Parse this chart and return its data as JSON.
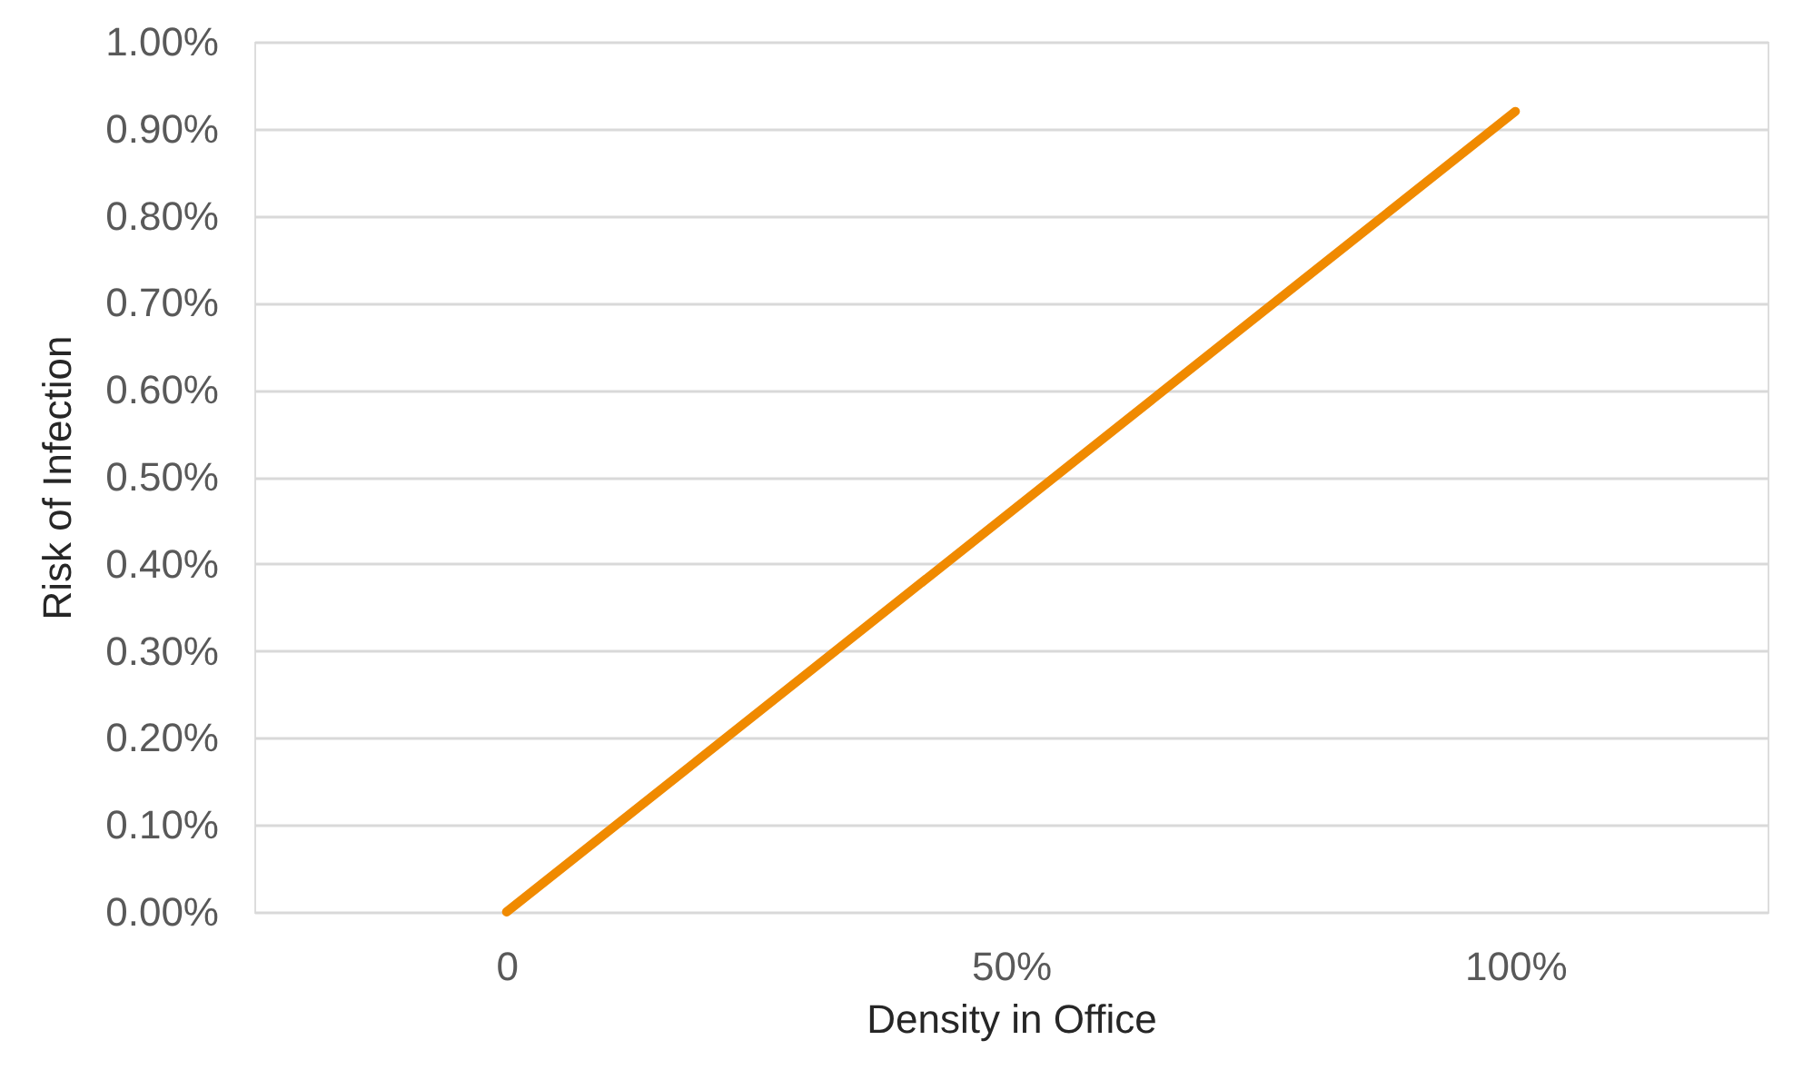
{
  "chart_data": {
    "type": "line",
    "xlabel": "Density in Office",
    "ylabel": "Risk of Infection",
    "x": [
      0,
      100
    ],
    "series": [
      {
        "color": "#f08a00",
        "values": [
          0,
          0.92
        ]
      }
    ],
    "xlim": [
      -25,
      125
    ],
    "xticks": [
      {
        "value": 0,
        "label": "0"
      },
      {
        "value": 50,
        "label": "50%"
      },
      {
        "value": 100,
        "label": "100%"
      }
    ],
    "ylim": [
      0,
      1
    ],
    "yticks": [
      {
        "value": 0,
        "label": "0.00%"
      },
      {
        "value": 0.1,
        "label": "0.10%"
      },
      {
        "value": 0.2,
        "label": "0.20%"
      },
      {
        "value": 0.3,
        "label": "0.30%"
      },
      {
        "value": 0.4,
        "label": "0.40%"
      },
      {
        "value": 0.5,
        "label": "0.50%"
      },
      {
        "value": 0.6,
        "label": "0.60%"
      },
      {
        "value": 0.7,
        "label": "0.70%"
      },
      {
        "value": 0.8,
        "label": "0.80%"
      },
      {
        "value": 0.9,
        "label": "0.90%"
      },
      {
        "value": 1,
        "label": "1.00%"
      }
    ],
    "grid": "y",
    "marker": "none",
    "line_style": "solid"
  }
}
